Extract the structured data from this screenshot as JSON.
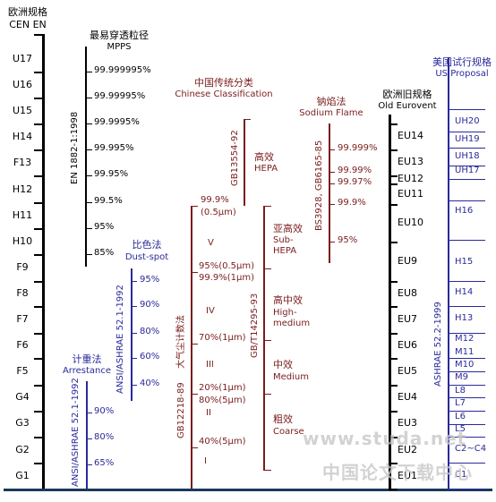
{
  "cen": {
    "title_cn": "欧洲规格",
    "title_en": "CEN EN",
    "labels": [
      "U17",
      "U16",
      "U15",
      "H14",
      "F13",
      "H12",
      "H11",
      "H10",
      "F9",
      "F8",
      "F7",
      "F6",
      "F5",
      "G4",
      "G3",
      "G2",
      "G1"
    ]
  },
  "mpps": {
    "title_cn": "最易穿透粒径",
    "title_en": "MPPS",
    "standard": "EN 1882-1:1998",
    "values": [
      "99.999995%",
      "99.99995%",
      "99.9995%",
      "99.995%",
      "99.95%",
      "99.5%",
      "95%",
      "85%"
    ]
  },
  "dustspot": {
    "title_cn": "比色法",
    "title_en": "Dust-spot",
    "standard": "ANSI/ASHRAE 52.1-1992",
    "values": [
      "95%",
      "90%",
      "80%",
      "60%",
      "40%"
    ]
  },
  "arrestance": {
    "title_cn": "计重法",
    "title_en": "Arrestance",
    "standard": "ANSI/ASHRAE 52.1-1992",
    "values": [
      "90%",
      "80%",
      "65%"
    ]
  },
  "chinese": {
    "title_cn": "中国传统分类",
    "title_en": "Chinese Classification",
    "std_gb12218": "GB12218-89",
    "std_gb12218_name": "大气尘计数法",
    "std_gb13554": "GB13554-92",
    "std_gbt14295": "GB/T14295-93",
    "grades": [
      {
        "text": "99.9%"
      },
      {
        "text": "(0.5μm)"
      },
      {
        "text": "V"
      },
      {
        "text": "95%(0.5μm)"
      },
      {
        "text": "99.9%(1μm)"
      },
      {
        "text": "IV"
      },
      {
        "text": "70%(1μm)"
      },
      {
        "text": "III"
      },
      {
        "text": "20%(1μm)"
      },
      {
        "text": "80%(5μm)"
      },
      {
        "text": "II"
      },
      {
        "text": "40%(5μm)"
      },
      {
        "text": "I"
      }
    ],
    "classes": {
      "hepa_cn": "高效",
      "hepa_en": "HEPA",
      "subhepa_cn": "亚高效",
      "subhepa_en1": "Sub-",
      "subhepa_en2": "HEPA",
      "highmed_cn": "高中效",
      "highmed_en1": "High-",
      "highmed_en2": "medium",
      "medium_cn": "中效",
      "medium_en": "Medium",
      "coarse_cn": "粗效",
      "coarse_en": "Coarse"
    }
  },
  "sodium": {
    "title_cn": "钠焰法",
    "title_en": "Sodium Flame",
    "standard": "BS3928, GB6165-85",
    "values": [
      "99.999%",
      "99.99%",
      "99.97%",
      "99.9%",
      "95%"
    ]
  },
  "eurovent": {
    "title_cn": "欧洲旧规格",
    "title_en": "Old Eurovent",
    "labels": [
      "EU14",
      "EU13",
      "EU12",
      "EU11",
      "EU10",
      "EU9",
      "EU8",
      "EU7",
      "EU6",
      "EU5",
      "EU4",
      "EU3",
      "EU2",
      "EU1"
    ]
  },
  "us": {
    "title_cn": "美国试行规格",
    "title_en": "US Proposal",
    "standard": "ASHRAE 52.2-1999",
    "labels": [
      "UH20",
      "UH19",
      "UH18",
      "UH17",
      "H16",
      "H15",
      "H14",
      "H13",
      "M12",
      "M11",
      "M10",
      "M9",
      "L8",
      "L7",
      "L6",
      "L5",
      "C2~C4",
      "C1"
    ]
  },
  "watermark": {
    "url": "www.studa.net",
    "cn": "中国论文下载中心"
  }
}
